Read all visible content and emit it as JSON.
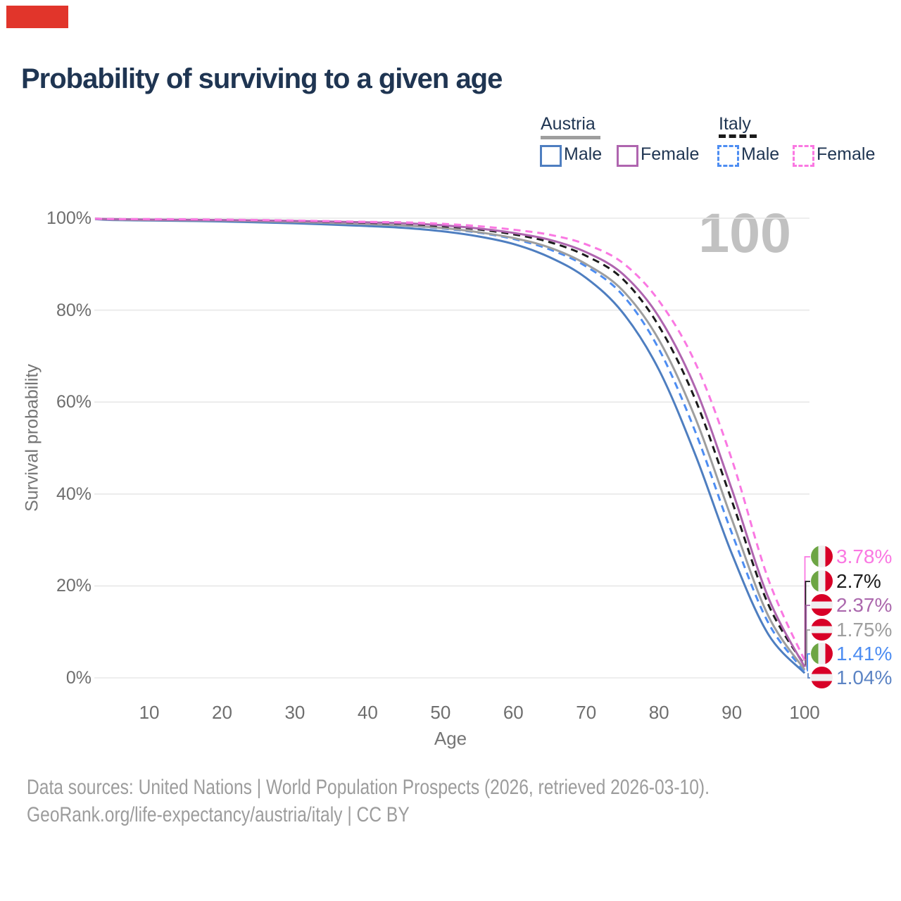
{
  "title": "Probability of surviving to a given age",
  "watermark": "100",
  "colors": {
    "marker_red": "#e1352b",
    "title_text": "#1f3552",
    "grid": "#e8e8e8",
    "axis_text": "#6e6e6e",
    "axis_title_text": "#757575",
    "watermark_gray": "#c1c1c1",
    "footer_gray": "#9c9c9c"
  },
  "legend": {
    "groups": [
      {
        "label": "Austria",
        "line_style": "solid",
        "line_color": "#9e9e9e",
        "items": [
          {
            "label": "Male",
            "color": "#4e7ec0",
            "dashed": false
          },
          {
            "label": "Female",
            "color": "#af65af",
            "dashed": false
          }
        ]
      },
      {
        "label": "Italy",
        "line_style": "dashed",
        "line_color": "#1b1b1b",
        "items": [
          {
            "label": "Male",
            "color": "#4d8df2",
            "dashed": true
          },
          {
            "label": "Female",
            "color": "#fa78e2",
            "dashed": true
          }
        ]
      }
    ]
  },
  "y_axis": {
    "title": "Survival probability",
    "ticks": [
      "100%",
      "80%",
      "60%",
      "40%",
      "20%",
      "0%"
    ]
  },
  "x_axis": {
    "title": "Age",
    "ticks": [
      "10",
      "20",
      "30",
      "40",
      "50",
      "60",
      "70",
      "80",
      "90",
      "100"
    ]
  },
  "end_labels": [
    {
      "series": "italy-female",
      "flag": "italy",
      "value": "3.78%",
      "color": "#fa78e2"
    },
    {
      "series": "italy-total",
      "flag": "italy",
      "value": "2.7%",
      "color": "#1c1c1c"
    },
    {
      "series": "austria-female",
      "flag": "austria",
      "value": "2.37%",
      "color": "#ab68ad"
    },
    {
      "series": "austria-total",
      "flag": "austria",
      "value": "1.75%",
      "color": "#9e9e9e"
    },
    {
      "series": "italy-male",
      "flag": "italy",
      "value": "1.41%",
      "color": "#4d8df2"
    },
    {
      "series": "austria-male",
      "flag": "austria",
      "value": "1.04%",
      "color": "#5c84c4"
    }
  ],
  "footer": {
    "line1": "Data sources: United Nations | World Population Prospects (2026, retrieved 2026-03-10).",
    "line2": "GeoRank.org/life-expectancy/austria/italy | CC BY"
  },
  "chart_data": {
    "type": "line",
    "title": "Probability of surviving to a given age",
    "xlabel": "Age",
    "ylabel": "Survival probability",
    "x_range": [
      0,
      100
    ],
    "ylim_percent": [
      0,
      100
    ],
    "grid": "horizontal only",
    "legend_position": "top-right",
    "x": [
      0,
      5,
      10,
      20,
      30,
      40,
      45,
      50,
      55,
      60,
      65,
      70,
      75,
      80,
      85,
      90,
      95,
      100
    ],
    "series": [
      {
        "id": "austria-male",
        "name": "Austria Male",
        "style": "solid",
        "color": "#4e7ec0",
        "end_label": "1.04%",
        "values": [
          100,
          99.6,
          99.5,
          99.3,
          98.9,
          98.3,
          97.9,
          97.2,
          96.1,
          94.4,
          91.5,
          87.0,
          79.5,
          67.0,
          48.5,
          27.0,
          9.5,
          1.04
        ]
      },
      {
        "id": "italy-male",
        "name": "Italy Male",
        "style": "dashed",
        "color": "#4d8df2",
        "end_label": "1.41%",
        "values": [
          100,
          99.7,
          99.6,
          99.5,
          99.2,
          98.7,
          98.4,
          97.8,
          96.9,
          95.5,
          93.2,
          89.5,
          83.3,
          71.5,
          53.5,
          31.5,
          12.0,
          1.41
        ]
      },
      {
        "id": "austria-total",
        "name": "Austria",
        "style": "solid",
        "color": "#9e9e9e",
        "end_label": "1.75%",
        "values": [
          100,
          99.7,
          99.6,
          99.5,
          99.2,
          98.7,
          98.4,
          97.9,
          97.0,
          95.7,
          93.6,
          90.0,
          84.3,
          73.5,
          56.5,
          34.5,
          13.5,
          1.75
        ]
      },
      {
        "id": "italy-total",
        "name": "Italy",
        "style": "dashed",
        "color": "#1b1b1b",
        "end_label": "2.7%",
        "values": [
          100,
          99.8,
          99.7,
          99.6,
          99.4,
          99.0,
          98.8,
          98.3,
          97.6,
          96.5,
          94.8,
          91.8,
          86.8,
          76.5,
          60.5,
          38.5,
          16.0,
          2.7
        ]
      },
      {
        "id": "austria-female",
        "name": "Austria Female",
        "style": "solid",
        "color": "#af65af",
        "end_label": "2.37%",
        "values": [
          100,
          99.8,
          99.7,
          99.6,
          99.4,
          99.1,
          98.9,
          98.5,
          97.8,
          96.8,
          95.3,
          92.6,
          87.9,
          78.5,
          63.0,
          41.0,
          17.5,
          2.37
        ]
      },
      {
        "id": "italy-female",
        "name": "Italy Female",
        "style": "dashed",
        "color": "#fa78e2",
        "end_label": "3.78%",
        "values": [
          100,
          99.8,
          99.8,
          99.7,
          99.5,
          99.2,
          99.1,
          98.8,
          98.3,
          97.5,
          96.4,
          94.3,
          90.3,
          82.0,
          68.5,
          47.5,
          21.5,
          3.78
        ]
      }
    ]
  }
}
